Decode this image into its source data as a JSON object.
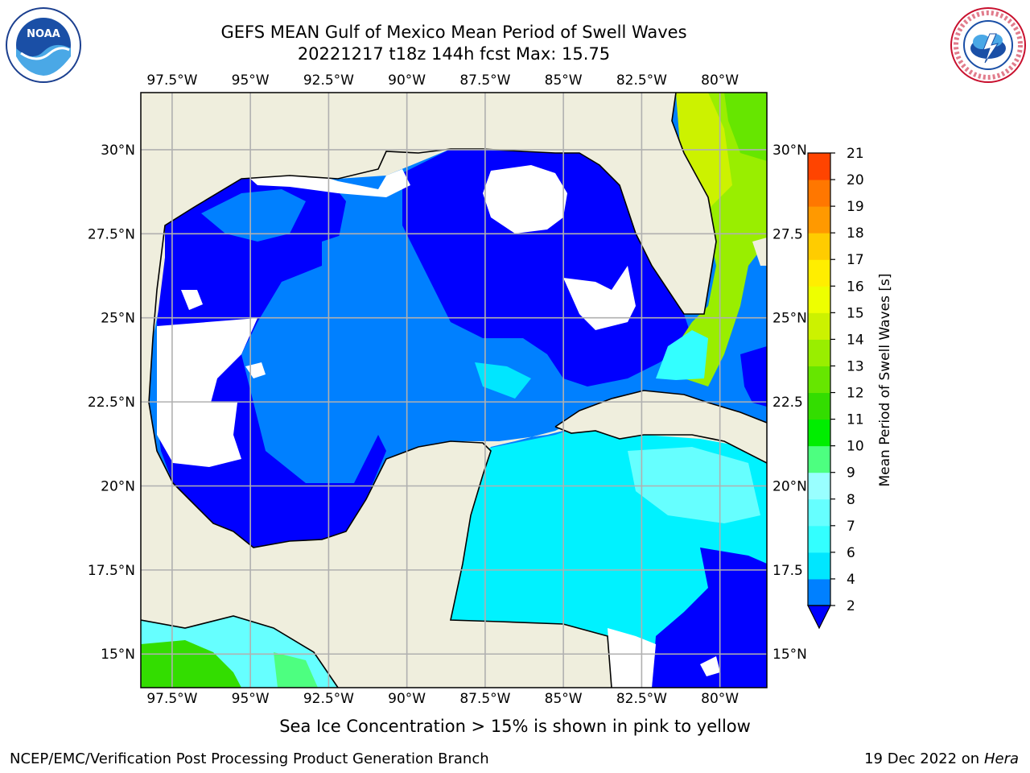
{
  "header": {
    "title_line1": "GEFS MEAN Gulf of Mexico Mean Period of Swell Waves",
    "title_line2": "20221217 t18z 144h fcst   Max: 15.75"
  },
  "logos": {
    "noaa_text": "NOAA",
    "noaa_ring_text": "NATIONAL OCEANIC AND ATMOSPHERIC ADMINISTRATION · U.S. DEPARTMENT OF COMMERCE",
    "nws_ring_text": "NATIONAL WEATHER SERVICE"
  },
  "footnote": "Sea Ice Concentration > 15% is shown in pink to yellow",
  "footer": {
    "left": "NCEP/EMC/Verification Post Processing Product Generation Branch",
    "right_date": "19 Dec 2022 on",
    "right_machine": "Hera"
  },
  "colors": {
    "land": "#efeedd",
    "grid": "#b0b0b0",
    "no_data": "#ffffff"
  },
  "chart_data": {
    "type": "heatmap",
    "title": "GEFS MEAN Gulf of Mexico Mean Period of Swell Waves",
    "subtitle": "20221217 t18z 144h fcst   Max: 15.75",
    "max_value": 15.75,
    "map": {
      "lon_range": [
        -98.5,
        -78.5
      ],
      "lat_range": [
        14,
        31.7
      ],
      "lon_ticks": [
        -97.5,
        -95,
        -92.5,
        -90,
        -87.5,
        -85,
        -82.5,
        -80
      ],
      "lon_tick_labels": [
        "97.5°W",
        "95°W",
        "92.5°W",
        "90°W",
        "87.5°W",
        "85°W",
        "82.5°W",
        "80°W"
      ],
      "lat_ticks": [
        15,
        17.5,
        20,
        22.5,
        25,
        27.5,
        30
      ],
      "lat_tick_labels": [
        "15°N",
        "17.5°N",
        "20°N",
        "22.5°N",
        "25°N",
        "27.5°N",
        "30°N"
      ],
      "right_lat_tick_labels": [
        "15°N",
        "17.5",
        "20°N",
        "22.5",
        "25°N",
        "27.5",
        "30°N"
      ],
      "grid": true
    },
    "colorbar": {
      "label": "Mean Period of Swell Waves [s]",
      "levels": [
        2,
        4,
        6,
        7,
        8,
        9,
        10,
        11,
        12,
        13,
        14,
        15,
        16,
        17,
        18,
        19,
        20,
        21
      ],
      "tick_labels": [
        "2",
        "4",
        "6",
        "7",
        "8",
        "9",
        "10",
        "11",
        "12",
        "13",
        "14",
        "15",
        "16",
        "17",
        "18",
        "19",
        "20",
        "21"
      ],
      "colors": [
        "#0080ff",
        "#00e6ff",
        "#33ffff",
        "#66ffff",
        "#99ffff",
        "#4dff80",
        "#00ee00",
        "#33dd00",
        "#66e600",
        "#99ee00",
        "#ccf200",
        "#eeff00",
        "#ffee00",
        "#ffcc00",
        "#ff9900",
        "#ff7700",
        "#ff4400"
      ],
      "under_color": "#0000ff",
      "extend": "min"
    }
  }
}
